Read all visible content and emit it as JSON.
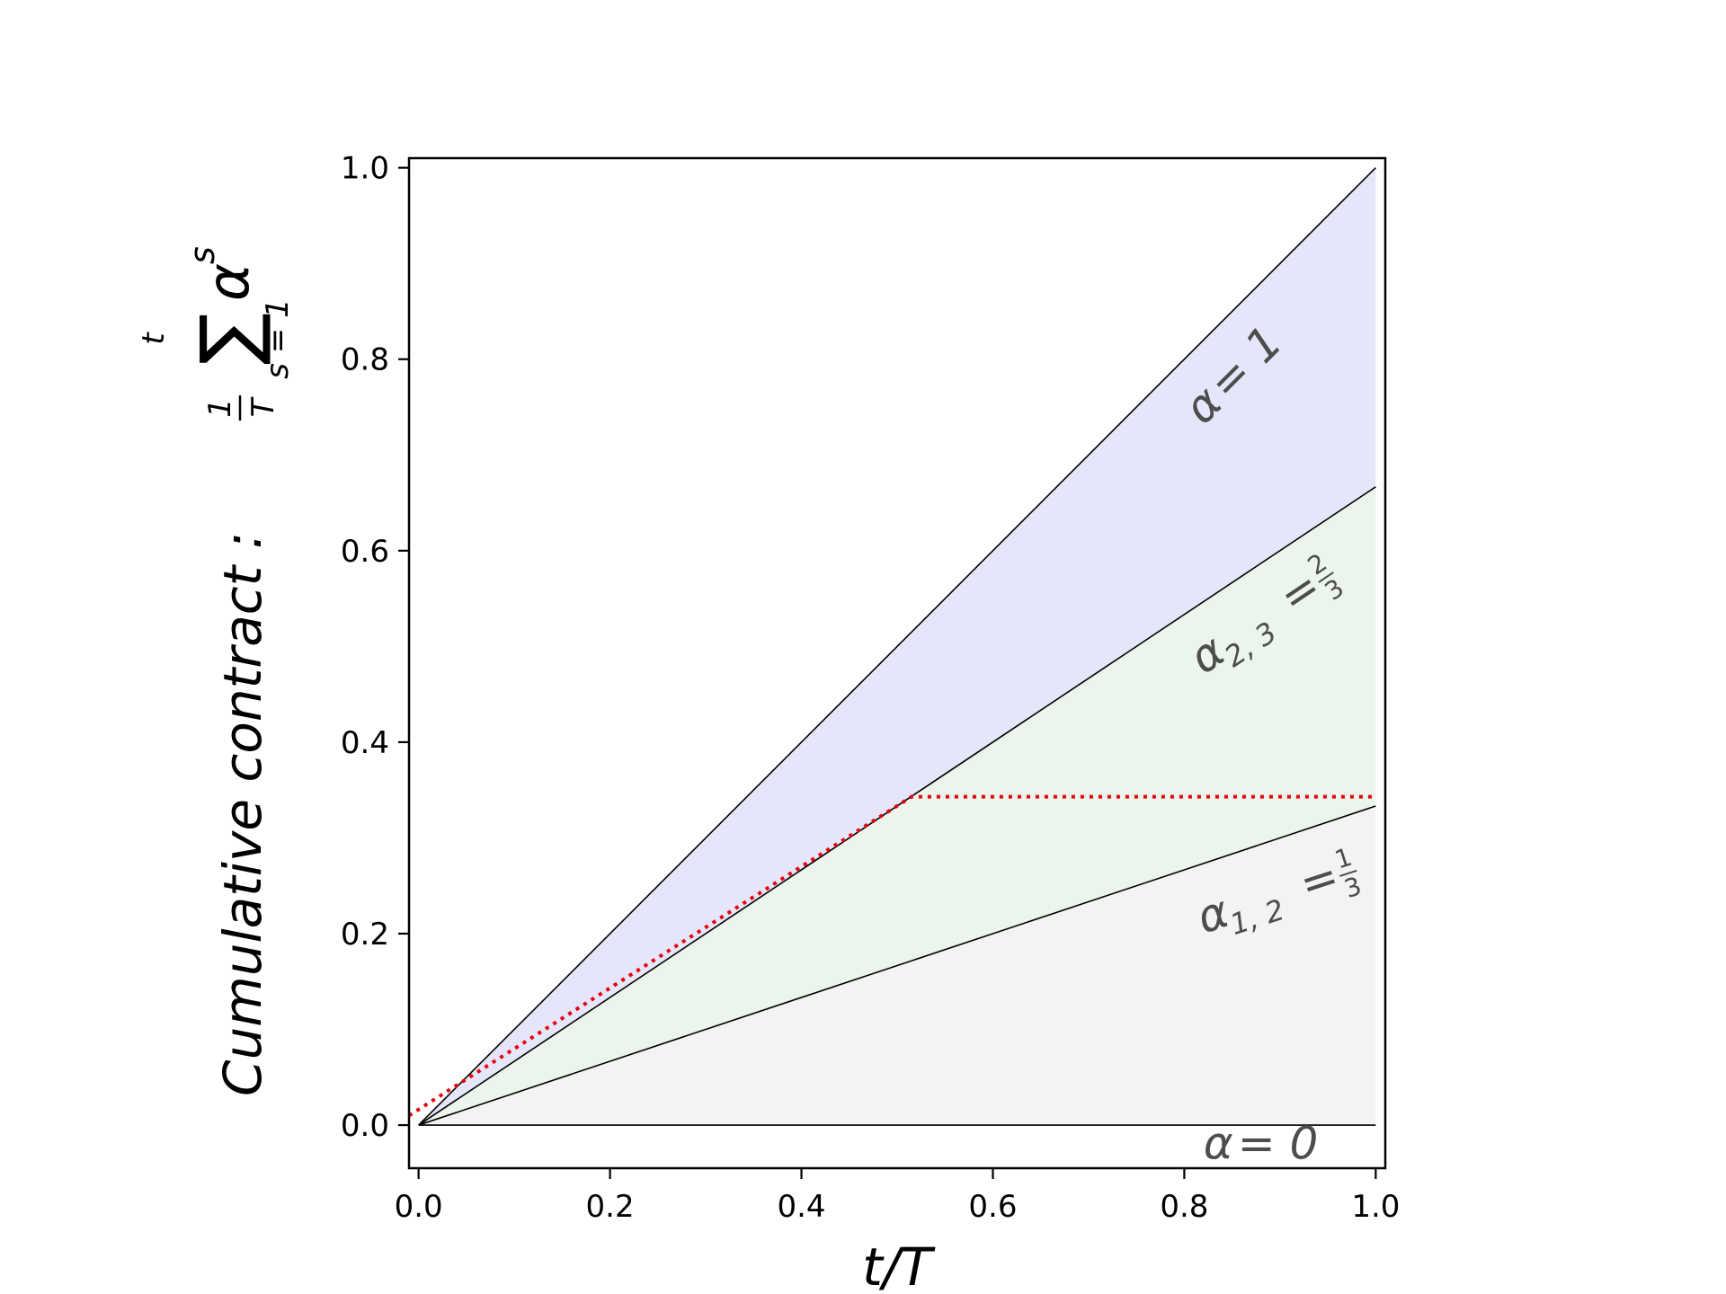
{
  "chart_data": {
    "type": "area",
    "xlabel": "t/T",
    "ylabel": {
      "prefix": "Cumulative contract :",
      "frac_num": "1",
      "frac_den": "T",
      "sum_upper": "t",
      "sum_symbol": "∑",
      "sum_lower": "s = 1",
      "term": "α",
      "term_sup": "s"
    },
    "xlim": [
      -0.01,
      1.01
    ],
    "ylim": [
      -0.045,
      1.01
    ],
    "x_ticks": [
      "0.0",
      "0.2",
      "0.4",
      "0.6",
      "0.8",
      "1.0"
    ],
    "y_ticks": [
      "0.0",
      "0.2",
      "0.4",
      "0.6",
      "0.8",
      "1.0"
    ],
    "grid": false,
    "series": [
      {
        "x": [
          0,
          1
        ],
        "y": [
          0,
          1
        ],
        "color": "#000000",
        "style": "solid"
      },
      {
        "x": [
          0,
          1
        ],
        "y": [
          0,
          0.6667
        ],
        "color": "#000000",
        "style": "solid"
      },
      {
        "x": [
          0,
          1
        ],
        "y": [
          0,
          0.3333
        ],
        "color": "#000000",
        "style": "solid"
      },
      {
        "x": [
          0,
          1
        ],
        "y": [
          0,
          0
        ],
        "color": "#000000",
        "style": "solid"
      },
      {
        "x": [
          -0.01,
          0.515,
          1.0
        ],
        "y": [
          0.01,
          0.343,
          0.343
        ],
        "color": "#e8000b",
        "style": "dotted"
      }
    ],
    "fills": [
      {
        "between": [
          1,
          0.6667
        ],
        "color": "#e6e6fa"
      },
      {
        "between": [
          0.6667,
          0.3333
        ],
        "color": "#ebf5eb"
      },
      {
        "between": [
          0.3333,
          0
        ],
        "color": "#f3f3f3"
      }
    ],
    "annotations": [
      {
        "base": "α",
        "sub": "",
        "eq": "= 1",
        "num": "",
        "den": "",
        "x": 0.82,
        "y": 0.73,
        "rotation": -45
      },
      {
        "base": "α",
        "sub": "2, 3",
        "eq": "=",
        "num": "2",
        "den": "3",
        "x": 0.82,
        "y": 0.47,
        "rotation": -34
      },
      {
        "base": "α",
        "sub": "1, 2",
        "eq": "=",
        "num": "1",
        "den": "3",
        "x": 0.82,
        "y": 0.2,
        "rotation": -18
      },
      {
        "base": "α",
        "sub": "",
        "eq": "= 0",
        "num": "",
        "den": "",
        "x": 0.82,
        "y": -0.035,
        "rotation": 0
      }
    ]
  }
}
